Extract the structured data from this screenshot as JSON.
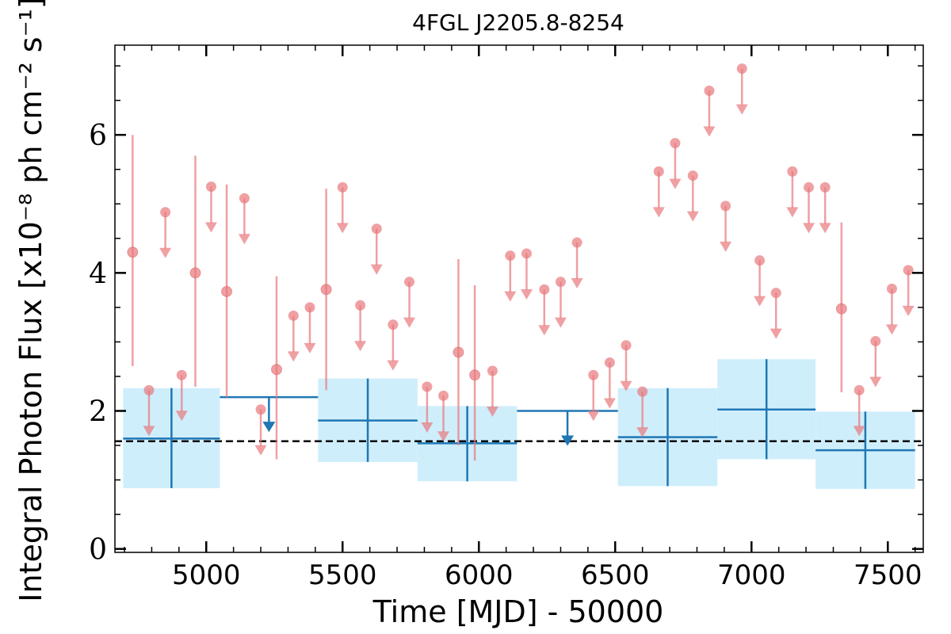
{
  "chart_data": {
    "type": "scatter",
    "title": "4FGL J2205.8-8254",
    "xlabel": "Time [MJD] - 50000",
    "ylabel": "Integral Photon Flux [x10⁻⁸ ph cm⁻² s⁻¹]",
    "xlim": [
      4665,
      7630
    ],
    "ylim": [
      -0.05,
      7.3
    ],
    "xticks": [
      "5000",
      "5500",
      "6000",
      "6500",
      "7000",
      "7500"
    ],
    "xtick_values": [
      5000,
      5500,
      6000,
      6500,
      7000,
      7500
    ],
    "yticks": [
      "0",
      "2",
      "4",
      "6"
    ],
    "ytick_values": [
      0,
      2,
      4,
      6
    ],
    "grid": false,
    "reference_line": {
      "y": 1.56,
      "style": "dashed"
    },
    "colors": {
      "fine": "#e8787c",
      "coarse": "#1f77b4",
      "band": "#cfeefc",
      "reference": "#000000"
    },
    "fine_detections": [
      {
        "x": 4730,
        "y": 4.3,
        "lo": 2.65,
        "hi": 6.0
      },
      {
        "x": 4960,
        "y": 4.0,
        "lo": 2.35,
        "hi": 5.7
      },
      {
        "x": 5075,
        "y": 3.73,
        "lo": 2.2,
        "hi": 5.28
      },
      {
        "x": 5258,
        "y": 2.6,
        "lo": 1.3,
        "hi": 3.95
      },
      {
        "x": 5440,
        "y": 3.76,
        "lo": 2.3,
        "hi": 5.22
      },
      {
        "x": 5925,
        "y": 2.85,
        "lo": 1.5,
        "hi": 4.2
      },
      {
        "x": 5985,
        "y": 2.52,
        "lo": 1.28,
        "hi": 3.82
      },
      {
        "x": 7330,
        "y": 3.48,
        "lo": 2.27,
        "hi": 4.73
      }
    ],
    "fine_upper_limits": [
      {
        "x": 4790,
        "y": 2.3
      },
      {
        "x": 4850,
        "y": 4.88
      },
      {
        "x": 4910,
        "y": 2.52
      },
      {
        "x": 5018,
        "y": 5.25
      },
      {
        "x": 5140,
        "y": 5.08
      },
      {
        "x": 5200,
        "y": 2.02
      },
      {
        "x": 5320,
        "y": 3.38
      },
      {
        "x": 5380,
        "y": 3.5
      },
      {
        "x": 5500,
        "y": 5.24
      },
      {
        "x": 5565,
        "y": 3.53
      },
      {
        "x": 5625,
        "y": 4.64
      },
      {
        "x": 5685,
        "y": 3.25
      },
      {
        "x": 5745,
        "y": 3.87
      },
      {
        "x": 5810,
        "y": 2.35
      },
      {
        "x": 5870,
        "y": 2.22
      },
      {
        "x": 6050,
        "y": 2.58
      },
      {
        "x": 6115,
        "y": 4.25
      },
      {
        "x": 6175,
        "y": 4.28
      },
      {
        "x": 6240,
        "y": 3.76
      },
      {
        "x": 6300,
        "y": 3.87
      },
      {
        "x": 6360,
        "y": 4.44
      },
      {
        "x": 6420,
        "y": 2.52
      },
      {
        "x": 6480,
        "y": 2.7
      },
      {
        "x": 6540,
        "y": 2.95
      },
      {
        "x": 6600,
        "y": 2.28
      },
      {
        "x": 6660,
        "y": 5.47
      },
      {
        "x": 6720,
        "y": 5.88
      },
      {
        "x": 6785,
        "y": 5.41
      },
      {
        "x": 6845,
        "y": 6.64
      },
      {
        "x": 6905,
        "y": 4.97
      },
      {
        "x": 6965,
        "y": 6.96
      },
      {
        "x": 7030,
        "y": 4.18
      },
      {
        "x": 7090,
        "y": 3.71
      },
      {
        "x": 7150,
        "y": 5.47
      },
      {
        "x": 7210,
        "y": 5.24
      },
      {
        "x": 7270,
        "y": 5.24
      },
      {
        "x": 7395,
        "y": 2.3
      },
      {
        "x": 7455,
        "y": 3.01
      },
      {
        "x": 7515,
        "y": 3.77
      },
      {
        "x": 7575,
        "y": 4.04
      }
    ],
    "coarse_detections": [
      {
        "x0": 4695,
        "x1": 5050,
        "y": 1.6,
        "lo": 0.88,
        "hi": 2.33
      },
      {
        "x0": 5410,
        "x1": 5775,
        "y": 1.86,
        "lo": 1.26,
        "hi": 2.47
      },
      {
        "x0": 5775,
        "x1": 6140,
        "y": 1.53,
        "lo": 0.98,
        "hi": 2.07
      },
      {
        "x0": 6510,
        "x1": 6875,
        "y": 1.62,
        "lo": 0.91,
        "hi": 2.33
      },
      {
        "x0": 6875,
        "x1": 7235,
        "y": 2.02,
        "lo": 1.3,
        "hi": 2.75
      },
      {
        "x0": 7235,
        "x1": 7600,
        "y": 1.43,
        "lo": 0.87,
        "hi": 1.99
      }
    ],
    "coarse_upper_limits": [
      {
        "x0": 5050,
        "x1": 5410,
        "y": 2.2
      },
      {
        "x0": 6140,
        "x1": 6510,
        "y": 2.0
      }
    ]
  }
}
